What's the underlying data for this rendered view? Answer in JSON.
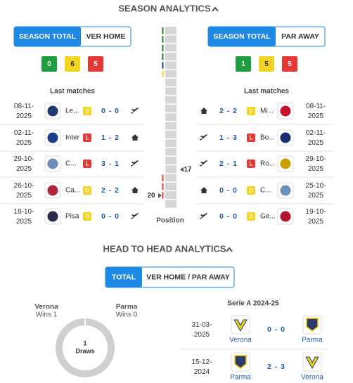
{
  "season": {
    "title": "SEASON ANALYTICS",
    "home": {
      "tabs": [
        "SEASON TOTAL",
        "VER HOME"
      ],
      "record": [
        "0",
        "6",
        "5"
      ],
      "last_matches_label": "Last matches",
      "matches": [
        {
          "date": "08-11-2025",
          "team": "Le...",
          "result": "D",
          "score": "0 - 0",
          "venue": "away",
          "logo": "#1f3a6e"
        },
        {
          "date": "02-11-2025",
          "team": "Inter",
          "result": "L",
          "score": "1 - 2",
          "venue": "home",
          "logo": "#1a3c8c"
        },
        {
          "date": "29-10-2025",
          "team": "C...",
          "result": "L",
          "score": "3 - 1",
          "venue": "away",
          "logo": "#6b8fb8"
        },
        {
          "date": "26-10-2025",
          "team": "Ca...",
          "result": "D",
          "score": "2 - 2",
          "venue": "home",
          "logo": "#b0263a"
        },
        {
          "date": "18-10-2025",
          "team": "Pisa",
          "result": "D",
          "score": "0 - 0",
          "venue": "away",
          "logo": "#2a2a4a"
        }
      ]
    },
    "away": {
      "tabs": [
        "SEASON TOTAL",
        "PAR AWAY"
      ],
      "record": [
        "1",
        "5",
        "5"
      ],
      "last_matches_label": "Last matches",
      "matches": [
        {
          "date": "08-11-2025",
          "team": "Mi...",
          "result": "D",
          "score": "2 - 2",
          "venue": "home",
          "logo": "#c8102e"
        },
        {
          "date": "02-11-2025",
          "team": "Bo...",
          "result": "L",
          "score": "1 - 3",
          "venue": "away",
          "logo": "#1a2f6b"
        },
        {
          "date": "29-10-2025",
          "team": "Ro...",
          "result": "L",
          "score": "2 - 1",
          "venue": "away",
          "logo": "#c9a000"
        },
        {
          "date": "25-10-2025",
          "team": "C...",
          "result": "D",
          "score": "0 - 0",
          "venue": "home",
          "logo": "#6b8fb8"
        },
        {
          "date": "19-10-2025",
          "team": "Ge...",
          "result": "D",
          "score": "0 - 0",
          "venue": "away",
          "logo": "#b3122e"
        }
      ]
    },
    "position": {
      "label": "Position",
      "home": "20",
      "away": "17"
    }
  },
  "h2h": {
    "title": "HEAD TO HEAD ANALYTICS",
    "tabs": [
      "TOTAL",
      "VER HOME / PAR AWAY"
    ],
    "home_team": "Verona",
    "home_wins": "Wins 1",
    "away_team": "Parma",
    "away_wins": "Wins 0",
    "draws": "1",
    "draws_label": "Draws",
    "competition": "Serie A 2024-25",
    "matches": [
      {
        "date": "31-03-2025",
        "home": "Verona",
        "score": "0 - 0",
        "away": "Parma"
      },
      {
        "date": "15-12-2024",
        "home": "Parma",
        "score": "2 - 3",
        "away": "Verona"
      }
    ]
  }
}
